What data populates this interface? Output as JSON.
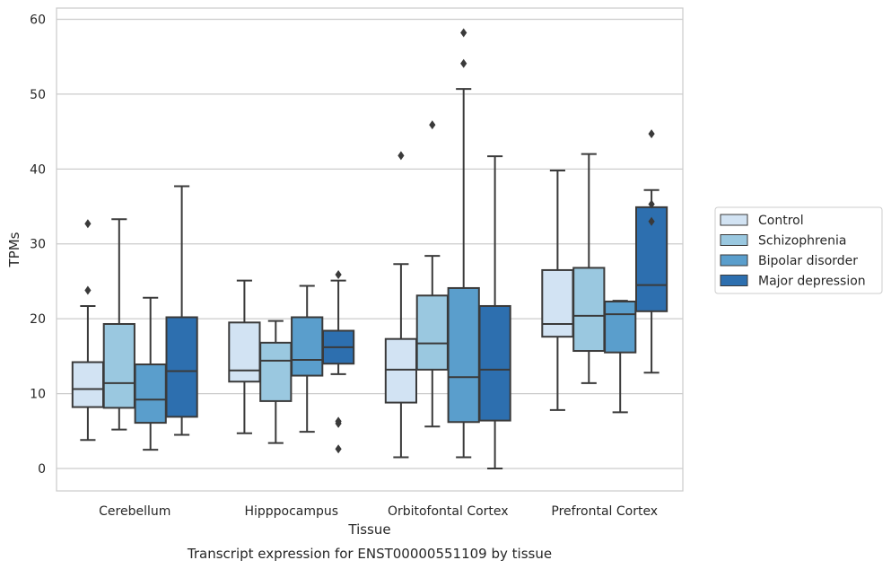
{
  "caption": "Transcript expression for ENST00000551109 by tissue",
  "chart_data": {
    "type": "box",
    "title": "",
    "xlabel": "Tissue",
    "ylabel": "TPMs",
    "ylim": [
      -3,
      61.5
    ],
    "yticks": [
      0,
      10,
      20,
      30,
      40,
      50,
      60
    ],
    "grid": "horizontal",
    "legend_placement": "right",
    "categories": [
      "Cerebellum",
      "Hipppocampus",
      "Orbitofontal Cortex",
      "Prefrontal Cortex"
    ],
    "series": [
      {
        "name": "Control",
        "color": "#d2e3f3",
        "boxes": [
          {
            "whislo": 3.8,
            "q1": 8.2,
            "med": 10.6,
            "q3": 14.2,
            "whishi": 21.7,
            "fliers": [
              23.8,
              32.7
            ]
          },
          {
            "whislo": 4.7,
            "q1": 11.6,
            "med": 13.1,
            "q3": 19.5,
            "whishi": 25.1,
            "fliers": []
          },
          {
            "whislo": 1.5,
            "q1": 8.8,
            "med": 13.2,
            "q3": 17.3,
            "whishi": 27.3,
            "fliers": [
              41.8
            ]
          },
          {
            "whislo": 7.8,
            "q1": 17.6,
            "med": 19.3,
            "q3": 26.5,
            "whishi": 39.8,
            "fliers": []
          }
        ]
      },
      {
        "name": "Schizophrenia",
        "color": "#9ac8e0",
        "boxes": [
          {
            "whislo": 5.2,
            "q1": 8.1,
            "med": 11.4,
            "q3": 19.3,
            "whishi": 33.3,
            "fliers": []
          },
          {
            "whislo": 3.4,
            "q1": 9.0,
            "med": 14.4,
            "q3": 16.8,
            "whishi": 19.7,
            "fliers": []
          },
          {
            "whislo": 5.6,
            "q1": 13.2,
            "med": 16.7,
            "q3": 23.1,
            "whishi": 28.4,
            "fliers": [
              45.9
            ]
          },
          {
            "whislo": 11.4,
            "q1": 15.7,
            "med": 20.4,
            "q3": 26.8,
            "whishi": 42.0,
            "fliers": []
          }
        ]
      },
      {
        "name": "Bipolar disorder",
        "color": "#5a9ecc",
        "boxes": [
          {
            "whislo": 2.5,
            "q1": 6.1,
            "med": 9.2,
            "q3": 13.9,
            "whishi": 22.8,
            "fliers": []
          },
          {
            "whislo": 4.9,
            "q1": 12.4,
            "med": 14.5,
            "q3": 20.2,
            "whishi": 24.4,
            "fliers": []
          },
          {
            "whislo": 1.5,
            "q1": 6.2,
            "med": 12.2,
            "q3": 24.1,
            "whishi": 50.7,
            "fliers": [
              54.1,
              58.2
            ]
          },
          {
            "whislo": 7.5,
            "q1": 15.5,
            "med": 20.6,
            "q3": 22.3,
            "whishi": 22.4,
            "fliers": []
          }
        ]
      },
      {
        "name": "Major depression",
        "color": "#2d6faf",
        "boxes": [
          {
            "whislo": 4.5,
            "q1": 6.9,
            "med": 13.0,
            "q3": 20.2,
            "whishi": 37.7,
            "fliers": []
          },
          {
            "whislo": 12.6,
            "q1": 14.0,
            "med": 16.2,
            "q3": 18.4,
            "whishi": 25.1,
            "fliers": [
              2.6,
              6.0,
              6.3,
              25.9
            ]
          },
          {
            "whislo": 0.0,
            "q1": 6.4,
            "med": 13.2,
            "q3": 21.7,
            "whishi": 41.7,
            "fliers": []
          },
          {
            "whislo": 12.8,
            "q1": 21.0,
            "med": 24.5,
            "q3": 34.9,
            "whishi": 37.2,
            "fliers": [
              33.0,
              35.3,
              44.7
            ]
          }
        ]
      }
    ]
  }
}
